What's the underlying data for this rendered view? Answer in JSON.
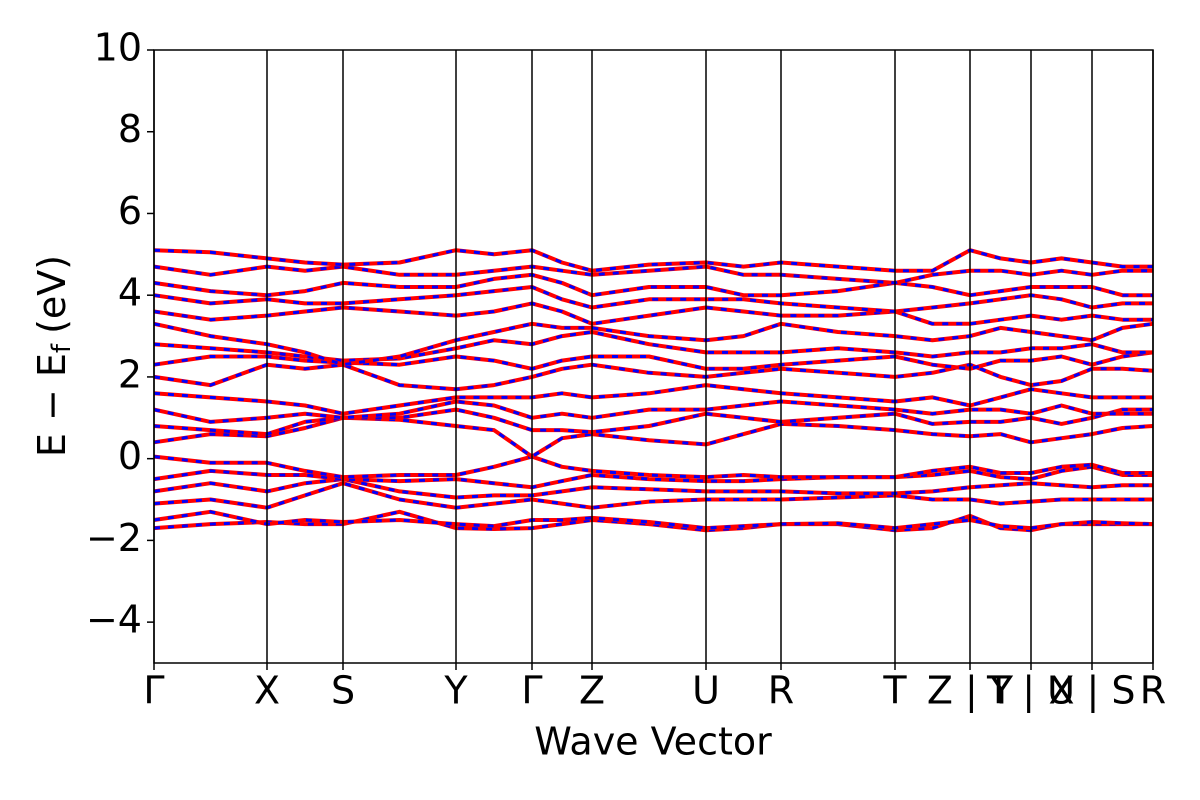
{
  "chart_data": {
    "type": "line",
    "xlabel": "Wave Vector",
    "ylabel": {
      "main": "E − E",
      "sub": "f",
      "unit": "(eV)"
    },
    "xlim": [
      0,
      3.996
    ],
    "ylim": [
      -5,
      10
    ],
    "yticks": [
      10,
      8,
      6,
      4,
      2,
      0,
      {
        "value": -2,
        "label": "−2"
      },
      {
        "value": -4,
        "label": "−4"
      }
    ],
    "xticks": [
      {
        "value": 0,
        "label": "Γ"
      },
      {
        "value": 0.452,
        "label": "X"
      },
      {
        "value": 0.756,
        "label": "S"
      },
      {
        "value": 1.208,
        "label": "Y"
      },
      {
        "value": 1.512,
        "label": "Γ"
      },
      {
        "value": 1.752,
        "label": "Z"
      },
      {
        "value": 2.208,
        "label": "U"
      },
      {
        "value": 2.508,
        "label": "R"
      },
      {
        "value": 2.964,
        "label": "T"
      },
      {
        "value": 3.264,
        "label": "Z | Y"
      },
      {
        "value": 3.508,
        "label": "T | U"
      },
      {
        "value": 3.752,
        "label": "X | S"
      },
      {
        "value": 3.996,
        "label": "R"
      }
    ],
    "color": "#ff0000",
    "dash_color": "#0000ff",
    "x": [
      0,
      0.226,
      0.452,
      0.604,
      0.756,
      0.982,
      1.208,
      1.36,
      1.512,
      1.632,
      1.752,
      1.98,
      2.208,
      2.358,
      2.508,
      2.736,
      2.964,
      3.114,
      3.264,
      3.386,
      3.508,
      3.63,
      3.752,
      3.874,
      3.996
    ],
    "series": [
      {
        "values": [
          -1.7,
          -1.6,
          -1.55,
          -1.6,
          -1.6,
          -1.3,
          -1.7,
          -1.72,
          -1.7,
          -1.6,
          -1.5,
          -1.6,
          -1.75,
          -1.7,
          -1.6,
          -1.6,
          -1.75,
          -1.7,
          -1.4,
          -1.7,
          -1.75,
          -1.6,
          -1.6,
          -1.6,
          -1.6
        ]
      },
      {
        "values": [
          -1.5,
          -1.3,
          -1.6,
          -1.5,
          -1.55,
          -1.5,
          -1.6,
          -1.65,
          -1.5,
          -1.5,
          -1.45,
          -1.55,
          -1.7,
          -1.65,
          -1.6,
          -1.58,
          -1.7,
          -1.6,
          -1.5,
          -1.65,
          -1.7,
          -1.6,
          -1.55,
          -1.58,
          -1.6
        ]
      },
      {
        "values": [
          -1.1,
          -1.0,
          -1.2,
          -0.9,
          -0.6,
          -1.0,
          -1.2,
          -1.1,
          -1.0,
          -1.1,
          -1.2,
          -1.05,
          -1.0,
          -1.0,
          -1.0,
          -0.95,
          -0.9,
          -1.0,
          -1.0,
          -1.1,
          -1.05,
          -1.0,
          -1.0,
          -1.0,
          -1.0
        ]
      },
      {
        "values": [
          -0.8,
          -0.6,
          -0.8,
          -0.6,
          -0.5,
          -0.8,
          -0.95,
          -0.9,
          -0.9,
          -0.8,
          -0.7,
          -0.75,
          -0.8,
          -0.8,
          -0.8,
          -0.85,
          -0.85,
          -0.8,
          -0.7,
          -0.65,
          -0.6,
          -0.65,
          -0.7,
          -0.65,
          -0.65
        ]
      },
      {
        "values": [
          -0.5,
          -0.3,
          -0.4,
          -0.4,
          -0.5,
          -0.55,
          -0.5,
          -0.6,
          -0.7,
          -0.55,
          -0.4,
          -0.5,
          -0.55,
          -0.55,
          -0.5,
          -0.45,
          -0.45,
          -0.4,
          -0.3,
          -0.45,
          -0.5,
          -0.3,
          -0.2,
          -0.4,
          -0.4
        ]
      },
      {
        "values": [
          0.05,
          -0.1,
          -0.1,
          -0.3,
          -0.45,
          -0.4,
          -0.4,
          -0.2,
          0.05,
          -0.2,
          -0.3,
          -0.4,
          -0.45,
          -0.4,
          -0.45,
          -0.45,
          -0.45,
          -0.3,
          -0.2,
          -0.35,
          -0.35,
          -0.2,
          -0.15,
          -0.35,
          -0.35
        ]
      },
      {
        "values": [
          0.4,
          0.6,
          0.55,
          0.75,
          1.0,
          0.95,
          0.8,
          0.7,
          0.05,
          0.5,
          0.6,
          0.45,
          0.35,
          0.6,
          0.85,
          0.8,
          0.7,
          0.6,
          0.55,
          0.6,
          0.4,
          0.5,
          0.6,
          0.75,
          0.8
        ]
      },
      {
        "values": [
          0.8,
          0.7,
          0.6,
          0.9,
          1.0,
          1.0,
          1.2,
          1.0,
          0.7,
          0.7,
          0.65,
          0.8,
          1.1,
          1.0,
          0.9,
          1.0,
          1.1,
          0.85,
          0.9,
          0.9,
          1.0,
          0.85,
          1.0,
          1.2,
          1.2
        ]
      },
      {
        "values": [
          1.2,
          0.9,
          1.0,
          1.1,
          1.0,
          1.1,
          1.4,
          1.3,
          1.0,
          1.1,
          1.0,
          1.2,
          1.2,
          1.3,
          1.4,
          1.3,
          1.2,
          1.1,
          1.2,
          1.2,
          1.1,
          1.3,
          1.1,
          1.1,
          1.1
        ]
      },
      {
        "values": [
          1.6,
          1.5,
          1.4,
          1.3,
          1.1,
          1.3,
          1.5,
          1.5,
          1.5,
          1.6,
          1.5,
          1.6,
          1.8,
          1.7,
          1.6,
          1.5,
          1.4,
          1.5,
          1.3,
          1.5,
          1.7,
          1.6,
          1.5,
          1.5,
          1.5
        ]
      },
      {
        "values": [
          2.0,
          1.8,
          2.3,
          2.2,
          2.3,
          1.8,
          1.7,
          1.8,
          2.0,
          2.2,
          2.3,
          2.1,
          2.0,
          2.1,
          2.2,
          2.1,
          2.0,
          2.1,
          2.3,
          2.0,
          1.8,
          1.9,
          2.2,
          2.2,
          2.15
        ]
      },
      {
        "values": [
          2.3,
          2.5,
          2.5,
          2.4,
          2.35,
          2.3,
          2.5,
          2.4,
          2.2,
          2.4,
          2.5,
          2.5,
          2.2,
          2.2,
          2.3,
          2.4,
          2.5,
          2.3,
          2.2,
          2.4,
          2.4,
          2.5,
          2.3,
          2.5,
          2.6
        ]
      },
      {
        "values": [
          2.8,
          2.7,
          2.6,
          2.5,
          2.4,
          2.45,
          2.7,
          2.9,
          2.8,
          3.0,
          3.1,
          2.8,
          2.6,
          2.6,
          2.6,
          2.7,
          2.6,
          2.5,
          2.6,
          2.6,
          2.7,
          2.7,
          2.8,
          2.6,
          2.6
        ]
      },
      {
        "values": [
          3.3,
          3.0,
          2.8,
          2.6,
          2.3,
          2.5,
          2.9,
          3.1,
          3.3,
          3.2,
          3.2,
          3.0,
          2.9,
          3.0,
          3.3,
          3.1,
          3.0,
          2.9,
          3.0,
          3.2,
          3.1,
          3.0,
          2.9,
          3.2,
          3.3
        ]
      },
      {
        "values": [
          3.6,
          3.4,
          3.5,
          3.6,
          3.7,
          3.6,
          3.5,
          3.6,
          3.8,
          3.6,
          3.3,
          3.5,
          3.7,
          3.6,
          3.5,
          3.5,
          3.6,
          3.3,
          3.3,
          3.4,
          3.5,
          3.4,
          3.5,
          3.4,
          3.4
        ]
      },
      {
        "values": [
          4.0,
          3.8,
          3.9,
          3.8,
          3.8,
          3.9,
          4.0,
          4.1,
          4.2,
          3.9,
          3.7,
          3.9,
          3.9,
          3.9,
          3.8,
          3.7,
          3.6,
          3.7,
          3.8,
          3.9,
          4.0,
          3.9,
          3.7,
          3.8,
          3.8
        ]
      },
      {
        "values": [
          4.3,
          4.1,
          4.0,
          4.1,
          4.3,
          4.2,
          4.2,
          4.4,
          4.5,
          4.3,
          4.0,
          4.2,
          4.2,
          4.0,
          4.0,
          4.1,
          4.3,
          4.2,
          4.0,
          4.1,
          4.2,
          4.2,
          4.2,
          4.0,
          4.0
        ]
      },
      {
        "values": [
          4.7,
          4.5,
          4.7,
          4.6,
          4.7,
          4.5,
          4.5,
          4.6,
          4.7,
          4.6,
          4.5,
          4.6,
          4.7,
          4.5,
          4.5,
          4.4,
          4.3,
          4.5,
          4.6,
          4.6,
          4.5,
          4.6,
          4.5,
          4.6,
          4.6
        ]
      },
      {
        "values": [
          5.1,
          5.05,
          4.9,
          4.8,
          4.75,
          4.8,
          5.1,
          5.0,
          5.1,
          4.8,
          4.6,
          4.75,
          4.8,
          4.7,
          4.8,
          4.7,
          4.6,
          4.6,
          5.1,
          4.9,
          4.8,
          4.9,
          4.8,
          4.7,
          4.7
        ]
      }
    ]
  }
}
